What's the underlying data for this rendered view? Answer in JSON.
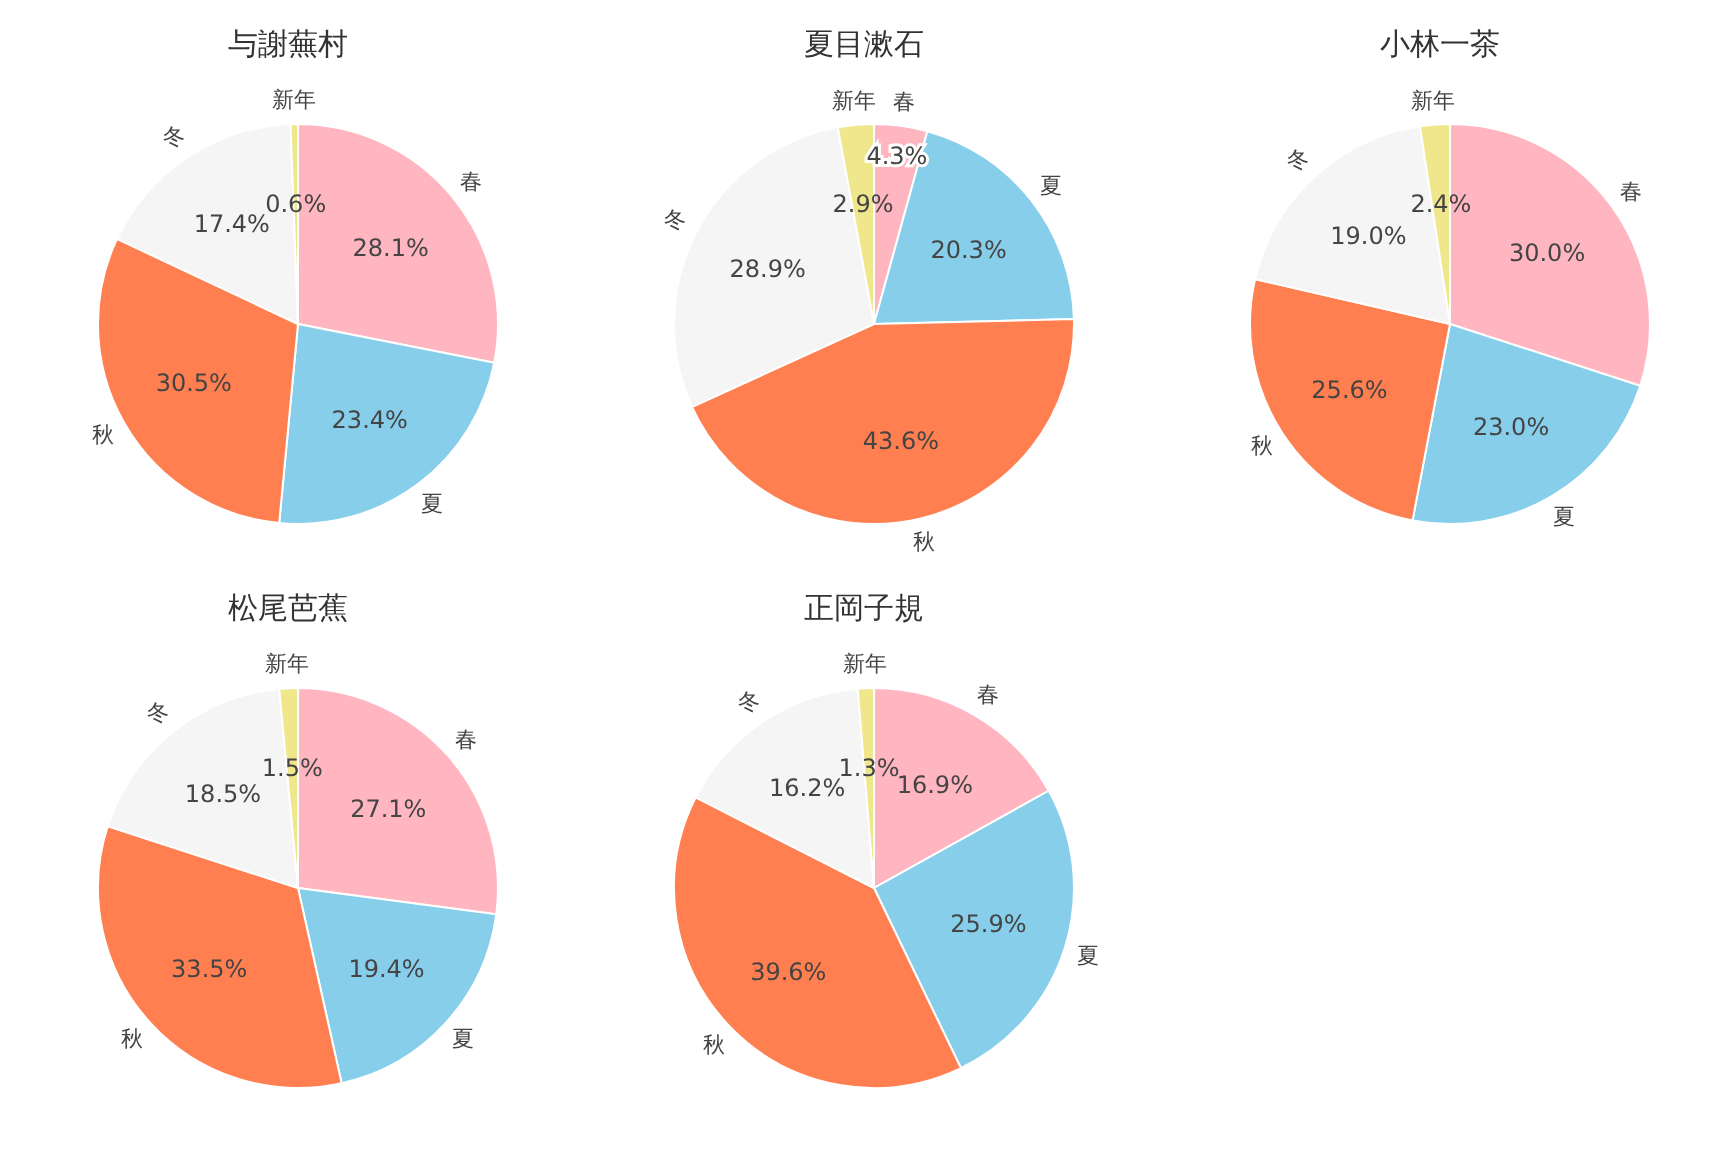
{
  "chart_data": [
    {
      "type": "pie",
      "title": "与謝蕪村",
      "categories": [
        "春",
        "夏",
        "秋",
        "冬",
        "新年"
      ],
      "values": [
        28.1,
        23.4,
        30.5,
        17.4,
        0.6
      ],
      "value_labels": [
        "28.1%",
        "23.4%",
        "30.5%",
        "17.4%",
        "0.6%"
      ],
      "colors": [
        "#ffb6c1",
        "#87ceeb",
        "#ff7f50",
        "#f5f5f5",
        "#f0e68c"
      ]
    },
    {
      "type": "pie",
      "title": "夏目漱石",
      "categories": [
        "春",
        "夏",
        "秋",
        "冬",
        "新年"
      ],
      "values": [
        4.3,
        20.3,
        43.6,
        28.9,
        2.9
      ],
      "value_labels": [
        "4.3%",
        "20.3%",
        "43.6%",
        "28.9%",
        "2.9%"
      ],
      "colors": [
        "#ffb6c1",
        "#87ceeb",
        "#ff7f50",
        "#f5f5f5",
        "#f0e68c"
      ]
    },
    {
      "type": "pie",
      "title": "小林一茶",
      "categories": [
        "春",
        "夏",
        "秋",
        "冬",
        "新年"
      ],
      "values": [
        30.0,
        23.0,
        25.6,
        19.0,
        2.4
      ],
      "value_labels": [
        "30.0%",
        "23.0%",
        "25.6%",
        "19.0%",
        "2.4%"
      ],
      "colors": [
        "#ffb6c1",
        "#87ceeb",
        "#ff7f50",
        "#f5f5f5",
        "#f0e68c"
      ]
    },
    {
      "type": "pie",
      "title": "松尾芭蕉",
      "categories": [
        "春",
        "夏",
        "秋",
        "冬",
        "新年"
      ],
      "values": [
        27.1,
        19.4,
        33.5,
        18.5,
        1.5
      ],
      "value_labels": [
        "27.1%",
        "19.4%",
        "33.5%",
        "18.5%",
        "1.5%"
      ],
      "colors": [
        "#ffb6c1",
        "#87ceeb",
        "#ff7f50",
        "#f5f5f5",
        "#f0e68c"
      ]
    },
    {
      "type": "pie",
      "title": "正岡子規",
      "categories": [
        "春",
        "夏",
        "秋",
        "冬",
        "新年"
      ],
      "values": [
        16.9,
        25.9,
        39.6,
        16.2,
        1.3
      ],
      "value_labels": [
        "16.9%",
        "25.9%",
        "39.6%",
        "16.2%",
        "1.3%"
      ],
      "colors": [
        "#ffb6c1",
        "#87ceeb",
        "#ff7f50",
        "#f5f5f5",
        "#f0e68c"
      ]
    }
  ]
}
